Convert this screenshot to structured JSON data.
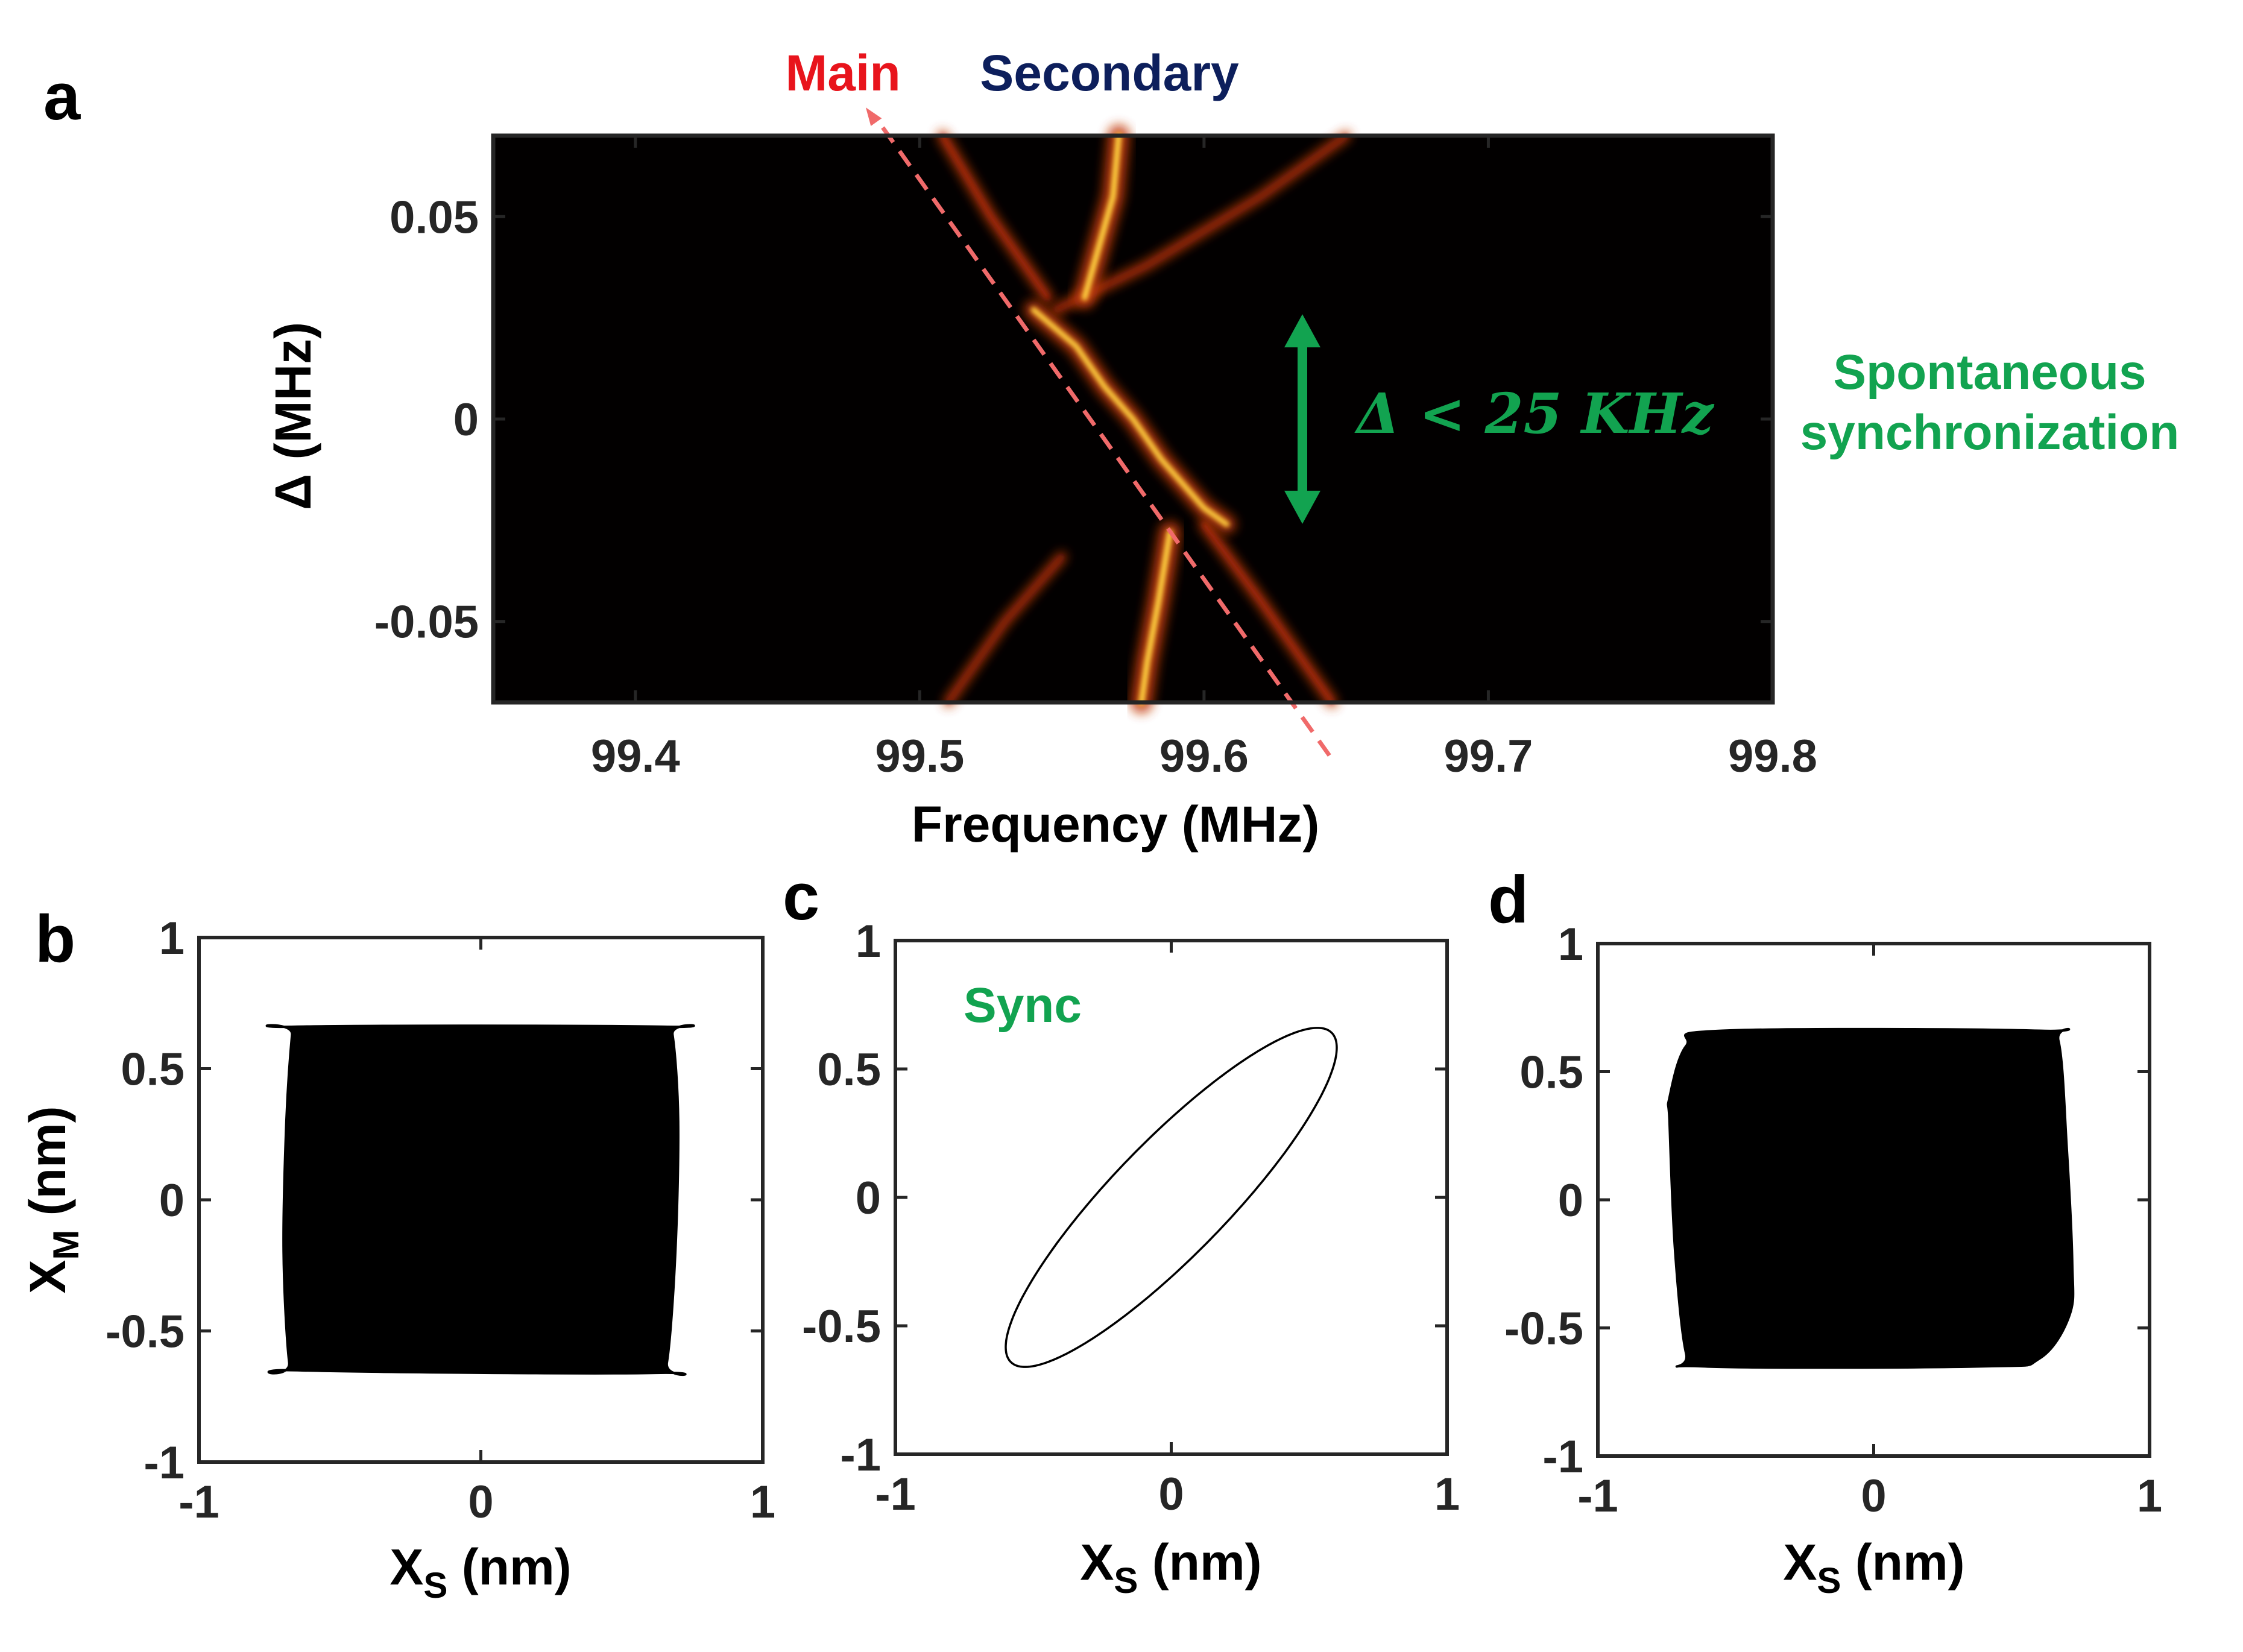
{
  "colors": {
    "main": "#e8141c",
    "secondary": "#0d1f5c",
    "sync": "#12a350",
    "dashed": "#f06a6a",
    "ridge": "#ffd23f",
    "ridge_glow": "#c43d10"
  },
  "chart_data": [
    {
      "id": "a",
      "type": "heatmap",
      "panel_letter": "a",
      "xlabel": "Frequency (MHz)",
      "ylabel": "Δ (MHz)",
      "xlim": [
        99.35,
        99.8
      ],
      "ylim": [
        -0.07,
        0.07
      ],
      "xticks": [
        99.4,
        99.5,
        99.6,
        99.7,
        99.8
      ],
      "xtick_labels": [
        "99.4",
        "99.5",
        "99.6",
        "99.7",
        "99.8"
      ],
      "yticks": [
        0.05,
        0,
        -0.05
      ],
      "ytick_labels": [
        "0.05",
        "0",
        "-0.05"
      ],
      "legend": {
        "main": "Main",
        "secondary": "Secondary"
      },
      "annotation_range": "Δ < 25 KHz",
      "annotation_range_limits": [
        -0.025,
        0.025
      ],
      "side_note": [
        "Spontaneous",
        "synchronization"
      ],
      "ridges": {
        "main_reference_line": [
          [
            99.487,
            0.072
          ],
          [
            99.645,
            -0.084
          ]
        ],
        "synchronized_ridge": [
          [
            99.54,
            0.027
          ],
          [
            99.555,
            0.018
          ],
          [
            99.565,
            0.008
          ],
          [
            99.575,
            0.0
          ],
          [
            99.585,
            -0.01
          ],
          [
            99.595,
            -0.018
          ],
          [
            99.6,
            -0.022
          ],
          [
            99.608,
            -0.026
          ]
        ],
        "secondary_upper": [
          [
            99.57,
            0.07
          ],
          [
            99.568,
            0.055
          ],
          [
            99.562,
            0.04
          ],
          [
            99.558,
            0.03
          ]
        ],
        "secondary_lower": [
          [
            99.588,
            -0.028
          ],
          [
            99.584,
            -0.045
          ],
          [
            99.58,
            -0.06
          ],
          [
            99.578,
            -0.07
          ]
        ],
        "sideband_upper_left": [
          [
            99.508,
            0.07
          ],
          [
            99.525,
            0.05
          ],
          [
            99.545,
            0.03
          ]
        ],
        "sideband_upper_right": [
          [
            99.548,
            0.027
          ],
          [
            99.58,
            0.038
          ],
          [
            99.62,
            0.055
          ],
          [
            99.65,
            0.07
          ]
        ],
        "sideband_lower_left": [
          [
            99.55,
            -0.034
          ],
          [
            99.53,
            -0.05
          ],
          [
            99.51,
            -0.07
          ]
        ],
        "sideband_lower_right": [
          [
            99.6,
            -0.026
          ],
          [
            99.62,
            -0.045
          ],
          [
            99.645,
            -0.07
          ]
        ]
      }
    },
    {
      "id": "b",
      "type": "area",
      "panel_letter": "b",
      "xlabel_main": "X",
      "xlabel_sub": "S",
      "xlabel_unit": " (nm)",
      "ylabel_main": "X",
      "ylabel_sub": "M",
      "ylabel_unit": " (nm)",
      "xlim": [
        -1,
        1
      ],
      "ylim": [
        -1,
        1
      ],
      "xticks": [
        -1,
        0,
        1
      ],
      "xtick_labels": [
        "-1",
        "0",
        "1"
      ],
      "yticks": [
        1,
        0.5,
        0,
        -0.5,
        -1
      ],
      "ytick_labels": [
        "1",
        "0.5",
        "0",
        "-0.5",
        "-1"
      ],
      "filled_region": [
        [
          -0.66,
          0.66
        ],
        [
          0.65,
          0.66
        ],
        [
          0.68,
          0.63
        ],
        [
          0.7,
          0.3
        ],
        [
          0.69,
          -0.2
        ],
        [
          0.66,
          -0.62
        ],
        [
          0.62,
          -0.66
        ],
        [
          -0.65,
          -0.65
        ],
        [
          -0.68,
          -0.62
        ],
        [
          -0.7,
          -0.2
        ],
        [
          -0.69,
          0.3
        ],
        [
          -0.67,
          0.63
        ]
      ]
    },
    {
      "id": "c",
      "type": "line",
      "panel_letter": "c",
      "xlabel_main": "X",
      "xlabel_sub": "S",
      "xlabel_unit": " (nm)",
      "xlim": [
        -1,
        1
      ],
      "ylim": [
        -1,
        1
      ],
      "xticks": [
        -1,
        0,
        1
      ],
      "xtick_labels": [
        "-1",
        "0",
        "1"
      ],
      "yticks": [
        1,
        0.5,
        0,
        -0.5,
        -1
      ],
      "ytick_labels": [
        "1",
        "0.5",
        "0",
        "-0.5",
        "-1"
      ],
      "annotation": "Sync",
      "ellipse": {
        "x_amplitude": 0.6,
        "y_amplitude": 0.66,
        "phase_lag_deg": 28
      }
    },
    {
      "id": "d",
      "type": "area",
      "panel_letter": "d",
      "xlabel_main": "X",
      "xlabel_sub": "S",
      "xlabel_unit": " (nm)",
      "xlim": [
        -1,
        1
      ],
      "ylim": [
        -1,
        1
      ],
      "xticks": [
        -1,
        0,
        1
      ],
      "xtick_labels": [
        "-1",
        "0",
        "1"
      ],
      "yticks": [
        1,
        0.5,
        0,
        -0.5,
        -1
      ],
      "ytick_labels": [
        "1",
        "0.5",
        "0",
        "-0.5",
        "-1"
      ],
      "filled_region": [
        [
          -0.55,
          0.66
        ],
        [
          0.6,
          0.66
        ],
        [
          0.67,
          0.62
        ],
        [
          0.7,
          0.2
        ],
        [
          0.72,
          -0.25
        ],
        [
          0.71,
          -0.45
        ],
        [
          0.6,
          -0.62
        ],
        [
          0.4,
          -0.65
        ],
        [
          -0.62,
          -0.65
        ],
        [
          -0.68,
          -0.6
        ],
        [
          -0.72,
          -0.2
        ],
        [
          -0.74,
          0.3
        ],
        [
          -0.74,
          0.4
        ],
        [
          -0.68,
          0.6
        ]
      ]
    }
  ]
}
